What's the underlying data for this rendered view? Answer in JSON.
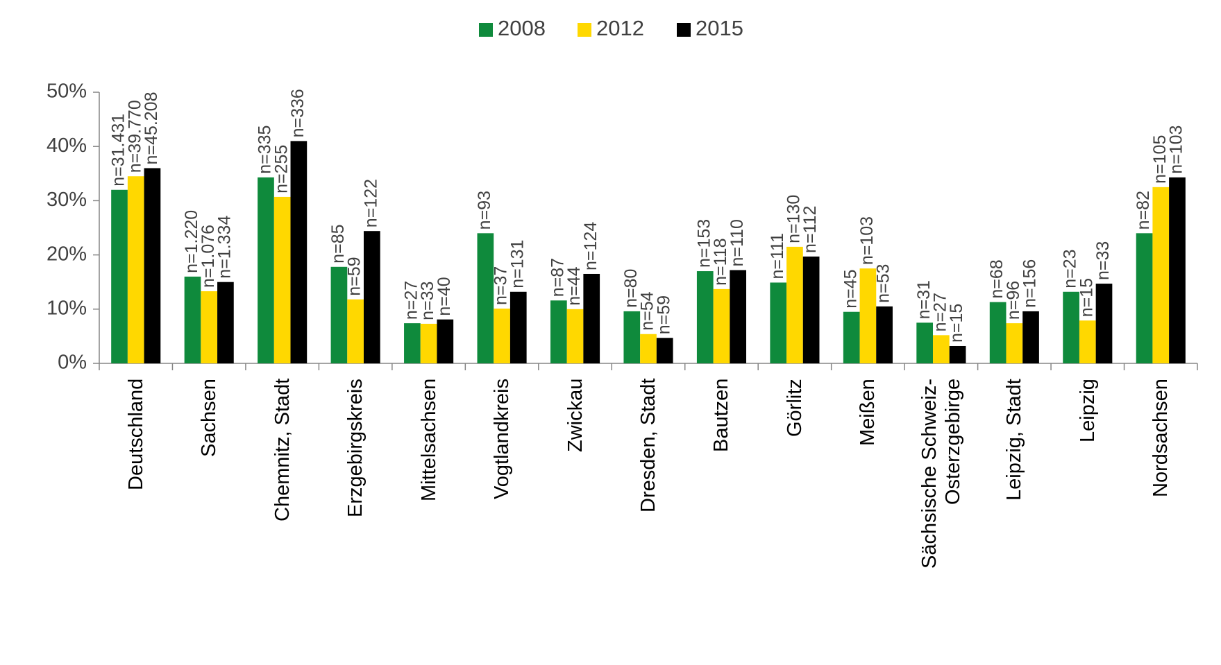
{
  "chart_data": {
    "type": "bar",
    "categories": [
      "Deutschland",
      "Sachsen",
      "Chemnitz, Stadt",
      "Erzgebirgskreis",
      "Mittelsachsen",
      "Vogtlandkreis",
      "Zwickau",
      "Dresden, Stadt",
      "Bautzen",
      "Görlitz",
      "Meißen",
      "Sächsische Schweiz-Osterzgebirge",
      "Leipzig, Stadt",
      "Leipzig",
      "Nordsachsen"
    ],
    "series": [
      {
        "name": "2008",
        "color": "#0f8a3c",
        "values": [
          32,
          16,
          34.3,
          17.8,
          7.4,
          24,
          11.6,
          9.6,
          17,
          14.9,
          9.5,
          7.5,
          11.3,
          13.2,
          24
        ],
        "sample_sizes": [
          "n=31.431",
          "n=1.220",
          "n=335",
          "n=85",
          "n=27",
          "n=93",
          "n=87",
          "n=80",
          "n=153",
          "n=111",
          "n=45",
          "n=31",
          "n=68",
          "n=23",
          "n=82"
        ]
      },
      {
        "name": "2012",
        "color": "#ffd800",
        "values": [
          34.5,
          13.3,
          30.7,
          11.8,
          7.3,
          10.1,
          10,
          5.4,
          13.7,
          21.5,
          17.5,
          5.2,
          7.4,
          7.9,
          32.5
        ],
        "sample_sizes": [
          "n=39.770",
          "n=1.076",
          "n=255",
          "n=59",
          "n=33",
          "n=37",
          "n=44",
          "n=54",
          "n=118",
          "n=130",
          "n=103",
          "n=27",
          "n=96",
          "n=15",
          "n=105"
        ]
      },
      {
        "name": "2015",
        "color": "#000000",
        "values": [
          36,
          15,
          41,
          24.4,
          8.1,
          13.2,
          16.5,
          4.7,
          17.2,
          19.7,
          10.5,
          3.2,
          9.6,
          14.7,
          34.3
        ],
        "sample_sizes": [
          "n=45.208",
          "n=1.334",
          "n=336",
          "n=122",
          "n=40",
          "n=131",
          "n=124",
          "n=59",
          "n=110",
          "n=112",
          "n=53",
          "n=15",
          "n=156",
          "n=33",
          "n=103"
        ]
      }
    ],
    "ylim": [
      0,
      50
    ],
    "yticks": [
      {
        "value": 0,
        "label": "0%"
      },
      {
        "value": 10,
        "label": "10%"
      },
      {
        "value": 20,
        "label": "20%"
      },
      {
        "value": 30,
        "label": "30%"
      },
      {
        "value": 40,
        "label": "40%"
      },
      {
        "value": 50,
        "label": "50%"
      }
    ],
    "legend": "top"
  }
}
